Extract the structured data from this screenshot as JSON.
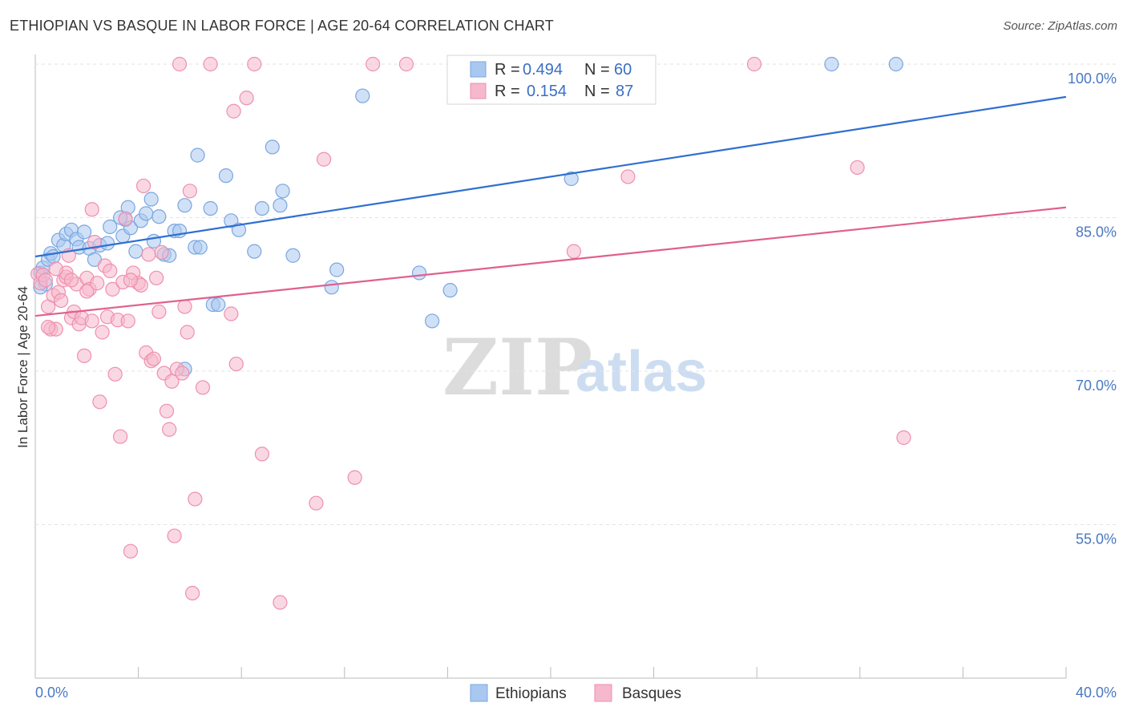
{
  "header": {
    "title": "ETHIOPIAN VS BASQUE IN LABOR FORCE | AGE 20-64 CORRELATION CHART",
    "source": "Source: ZipAtlas.com"
  },
  "legend": {
    "rows": [
      {
        "r_label": "R =",
        "r_value": "0.494",
        "n_label": "N =",
        "n_value": "60",
        "color": "#a9c8f0"
      },
      {
        "r_label": "R =",
        "r_value": "0.154",
        "n_label": "N =",
        "n_value": "87",
        "color": "#f6b8cc"
      }
    ]
  },
  "bottom_legend": {
    "items": [
      {
        "label": "Ethiopians",
        "color": "#a9c8f0"
      },
      {
        "label": "Basques",
        "color": "#f6b8cc"
      }
    ]
  },
  "watermark": {
    "zip": "ZIP",
    "atlas": "atlas"
  },
  "chart_data": {
    "type": "scatter",
    "ylabel": "In Labor Force | Age 20-64",
    "xlabel": "",
    "xlim": [
      0,
      40
    ],
    "ylim": [
      40,
      100
    ],
    "x_tick_labels": [
      "0.0%",
      "40.0%"
    ],
    "y_ticks": [
      100,
      85,
      70,
      55
    ],
    "y_tick_labels": [
      "100.0%",
      "85.0%",
      "70.0%",
      "55.0%"
    ],
    "grid": true,
    "series": [
      {
        "name": "Ethiopians",
        "color": "#7aa6e0",
        "fill": "#a9c8f0",
        "line_color": "#2f6fd0",
        "trend": {
          "x": [
            0,
            40
          ],
          "y": [
            81.2,
            96.8
          ]
        },
        "points": [
          [
            0.2,
            79.6
          ],
          [
            0.3,
            80.1
          ],
          [
            0.4,
            78.5
          ],
          [
            0.5,
            80.9
          ],
          [
            0.6,
            81.5
          ],
          [
            0.7,
            81.2
          ],
          [
            0.9,
            82.8
          ],
          [
            1.1,
            82.3
          ],
          [
            1.2,
            83.4
          ],
          [
            1.4,
            83.8
          ],
          [
            1.6,
            82.9
          ],
          [
            1.7,
            82.1
          ],
          [
            1.9,
            83.6
          ],
          [
            2.1,
            82.0
          ],
          [
            2.3,
            80.9
          ],
          [
            2.5,
            82.3
          ],
          [
            2.8,
            82.5
          ],
          [
            2.9,
            84.1
          ],
          [
            3.4,
            83.2
          ],
          [
            3.5,
            84.8
          ],
          [
            3.6,
            86.0
          ],
          [
            3.7,
            84.0
          ],
          [
            3.9,
            81.7
          ],
          [
            4.1,
            84.7
          ],
          [
            4.3,
            85.4
          ],
          [
            4.5,
            86.8
          ],
          [
            4.6,
            82.7
          ],
          [
            4.8,
            85.1
          ],
          [
            5.0,
            81.4
          ],
          [
            5.2,
            81.3
          ],
          [
            5.4,
            83.7
          ],
          [
            5.6,
            83.7
          ],
          [
            5.8,
            86.2
          ],
          [
            6.2,
            82.1
          ],
          [
            6.3,
            91.1
          ],
          [
            6.4,
            82.1
          ],
          [
            6.8,
            85.9
          ],
          [
            6.9,
            76.5
          ],
          [
            7.1,
            76.5
          ],
          [
            7.4,
            89.1
          ],
          [
            7.6,
            84.7
          ],
          [
            7.9,
            83.8
          ],
          [
            8.5,
            81.7
          ],
          [
            8.8,
            85.9
          ],
          [
            9.2,
            91.9
          ],
          [
            9.5,
            86.2
          ],
          [
            9.6,
            87.6
          ],
          [
            10.0,
            81.3
          ],
          [
            11.5,
            78.2
          ],
          [
            11.7,
            79.9
          ],
          [
            12.7,
            96.9
          ],
          [
            14.9,
            79.6
          ],
          [
            15.4,
            74.9
          ],
          [
            16.1,
            77.9
          ],
          [
            20.8,
            88.8
          ],
          [
            30.9,
            100.0
          ],
          [
            33.4,
            100.0
          ],
          [
            0.2,
            78.2
          ],
          [
            5.8,
            70.2
          ],
          [
            3.3,
            85.0
          ]
        ]
      },
      {
        "name": "Basques",
        "color": "#ef8fae",
        "fill": "#f6b8cc",
        "line_color": "#e0608f",
        "trend": {
          "x": [
            0,
            40
          ],
          "y": [
            75.4,
            86.0
          ]
        },
        "points": [
          [
            0.1,
            79.5
          ],
          [
            0.2,
            78.6
          ],
          [
            0.3,
            79.4
          ],
          [
            0.4,
            78.9
          ],
          [
            0.5,
            76.3
          ],
          [
            0.6,
            74.1
          ],
          [
            0.7,
            77.4
          ],
          [
            0.8,
            74.1
          ],
          [
            0.9,
            77.7
          ],
          [
            1.0,
            76.9
          ],
          [
            1.1,
            78.9
          ],
          [
            1.2,
            79.2
          ],
          [
            1.3,
            81.3
          ],
          [
            1.4,
            75.2
          ],
          [
            1.5,
            75.8
          ],
          [
            1.6,
            78.5
          ],
          [
            1.7,
            74.6
          ],
          [
            1.8,
            75.2
          ],
          [
            1.9,
            71.5
          ],
          [
            2.0,
            79.1
          ],
          [
            2.1,
            78.0
          ],
          [
            2.2,
            85.8
          ],
          [
            2.3,
            82.6
          ],
          [
            2.4,
            78.6
          ],
          [
            2.5,
            67.0
          ],
          [
            2.6,
            73.8
          ],
          [
            2.7,
            80.3
          ],
          [
            2.8,
            75.3
          ],
          [
            2.9,
            79.8
          ],
          [
            3.0,
            78.0
          ],
          [
            3.1,
            69.7
          ],
          [
            3.2,
            75.0
          ],
          [
            3.3,
            63.6
          ],
          [
            3.4,
            78.7
          ],
          [
            3.5,
            84.9
          ],
          [
            3.6,
            74.9
          ],
          [
            3.7,
            52.4
          ],
          [
            3.8,
            79.6
          ],
          [
            4.0,
            78.6
          ],
          [
            4.1,
            78.4
          ],
          [
            4.2,
            88.1
          ],
          [
            4.3,
            71.8
          ],
          [
            4.5,
            71.0
          ],
          [
            4.6,
            71.2
          ],
          [
            4.7,
            79.1
          ],
          [
            4.8,
            75.8
          ],
          [
            4.9,
            81.6
          ],
          [
            5.0,
            69.8
          ],
          [
            5.1,
            66.1
          ],
          [
            5.2,
            64.3
          ],
          [
            5.3,
            69.0
          ],
          [
            5.4,
            53.9
          ],
          [
            5.5,
            70.2
          ],
          [
            5.6,
            100.0
          ],
          [
            5.7,
            69.8
          ],
          [
            5.8,
            76.3
          ],
          [
            5.9,
            73.8
          ],
          [
            6.0,
            87.6
          ],
          [
            6.1,
            48.3
          ],
          [
            6.2,
            57.5
          ],
          [
            6.5,
            68.4
          ],
          [
            6.8,
            100.0
          ],
          [
            7.6,
            75.6
          ],
          [
            7.7,
            95.4
          ],
          [
            7.8,
            70.7
          ],
          [
            8.2,
            96.7
          ],
          [
            8.5,
            100.0
          ],
          [
            8.8,
            61.9
          ],
          [
            9.5,
            47.4
          ],
          [
            10.9,
            57.1
          ],
          [
            11.2,
            90.7
          ],
          [
            12.4,
            59.6
          ],
          [
            13.1,
            100.0
          ],
          [
            14.4,
            100.0
          ],
          [
            20.9,
            81.7
          ],
          [
            23.0,
            89.0
          ],
          [
            27.9,
            100.0
          ],
          [
            31.9,
            89.9
          ],
          [
            33.7,
            63.5
          ],
          [
            1.2,
            79.6
          ],
          [
            0.8,
            80.0
          ],
          [
            2.0,
            77.8
          ],
          [
            3.7,
            78.9
          ],
          [
            4.4,
            81.4
          ],
          [
            0.5,
            74.3
          ],
          [
            1.4,
            78.9
          ],
          [
            2.2,
            74.9
          ]
        ]
      }
    ]
  }
}
